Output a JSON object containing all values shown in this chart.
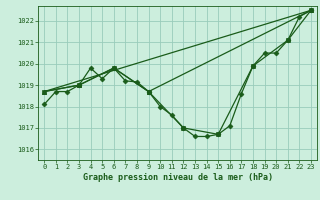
{
  "title": "Graphe pression niveau de la mer (hPa)",
  "background_color": "#cceedd",
  "grid_color": "#99ccbb",
  "line_color": "#1a5c1a",
  "xlim": [
    -0.5,
    23.5
  ],
  "ylim": [
    1015.5,
    1022.7
  ],
  "yticks": [
    1016,
    1017,
    1018,
    1019,
    1020,
    1021,
    1022
  ],
  "xticks": [
    0,
    1,
    2,
    3,
    4,
    5,
    6,
    7,
    8,
    9,
    10,
    11,
    12,
    13,
    14,
    15,
    16,
    17,
    18,
    19,
    20,
    21,
    22,
    23
  ],
  "series_main": {
    "x": [
      0,
      1,
      2,
      3,
      4,
      5,
      6,
      7,
      8,
      9,
      10,
      11,
      12,
      13,
      14,
      15,
      16,
      17,
      18,
      19,
      20,
      21,
      22,
      23
    ],
    "y": [
      1018.1,
      1018.7,
      1018.7,
      1019.0,
      1019.8,
      1019.3,
      1019.8,
      1019.2,
      1019.15,
      1018.7,
      1018.0,
      1017.6,
      1017.0,
      1016.6,
      1016.6,
      1016.7,
      1017.1,
      1018.6,
      1019.9,
      1020.5,
      1020.5,
      1021.1,
      1022.2,
      1022.5
    ]
  },
  "series_tri": {
    "x": [
      0,
      3,
      6,
      9,
      23
    ],
    "y": [
      1018.7,
      1019.0,
      1019.8,
      1018.7,
      1022.5
    ]
  },
  "series_sq": {
    "x": [
      0,
      3,
      6,
      9,
      12,
      15,
      18,
      21,
      23
    ],
    "y": [
      1018.7,
      1019.0,
      1019.8,
      1018.7,
      1017.0,
      1016.7,
      1019.9,
      1021.1,
      1022.5
    ]
  },
  "series_straight": {
    "x": [
      0,
      23
    ],
    "y": [
      1018.7,
      1022.5
    ]
  }
}
